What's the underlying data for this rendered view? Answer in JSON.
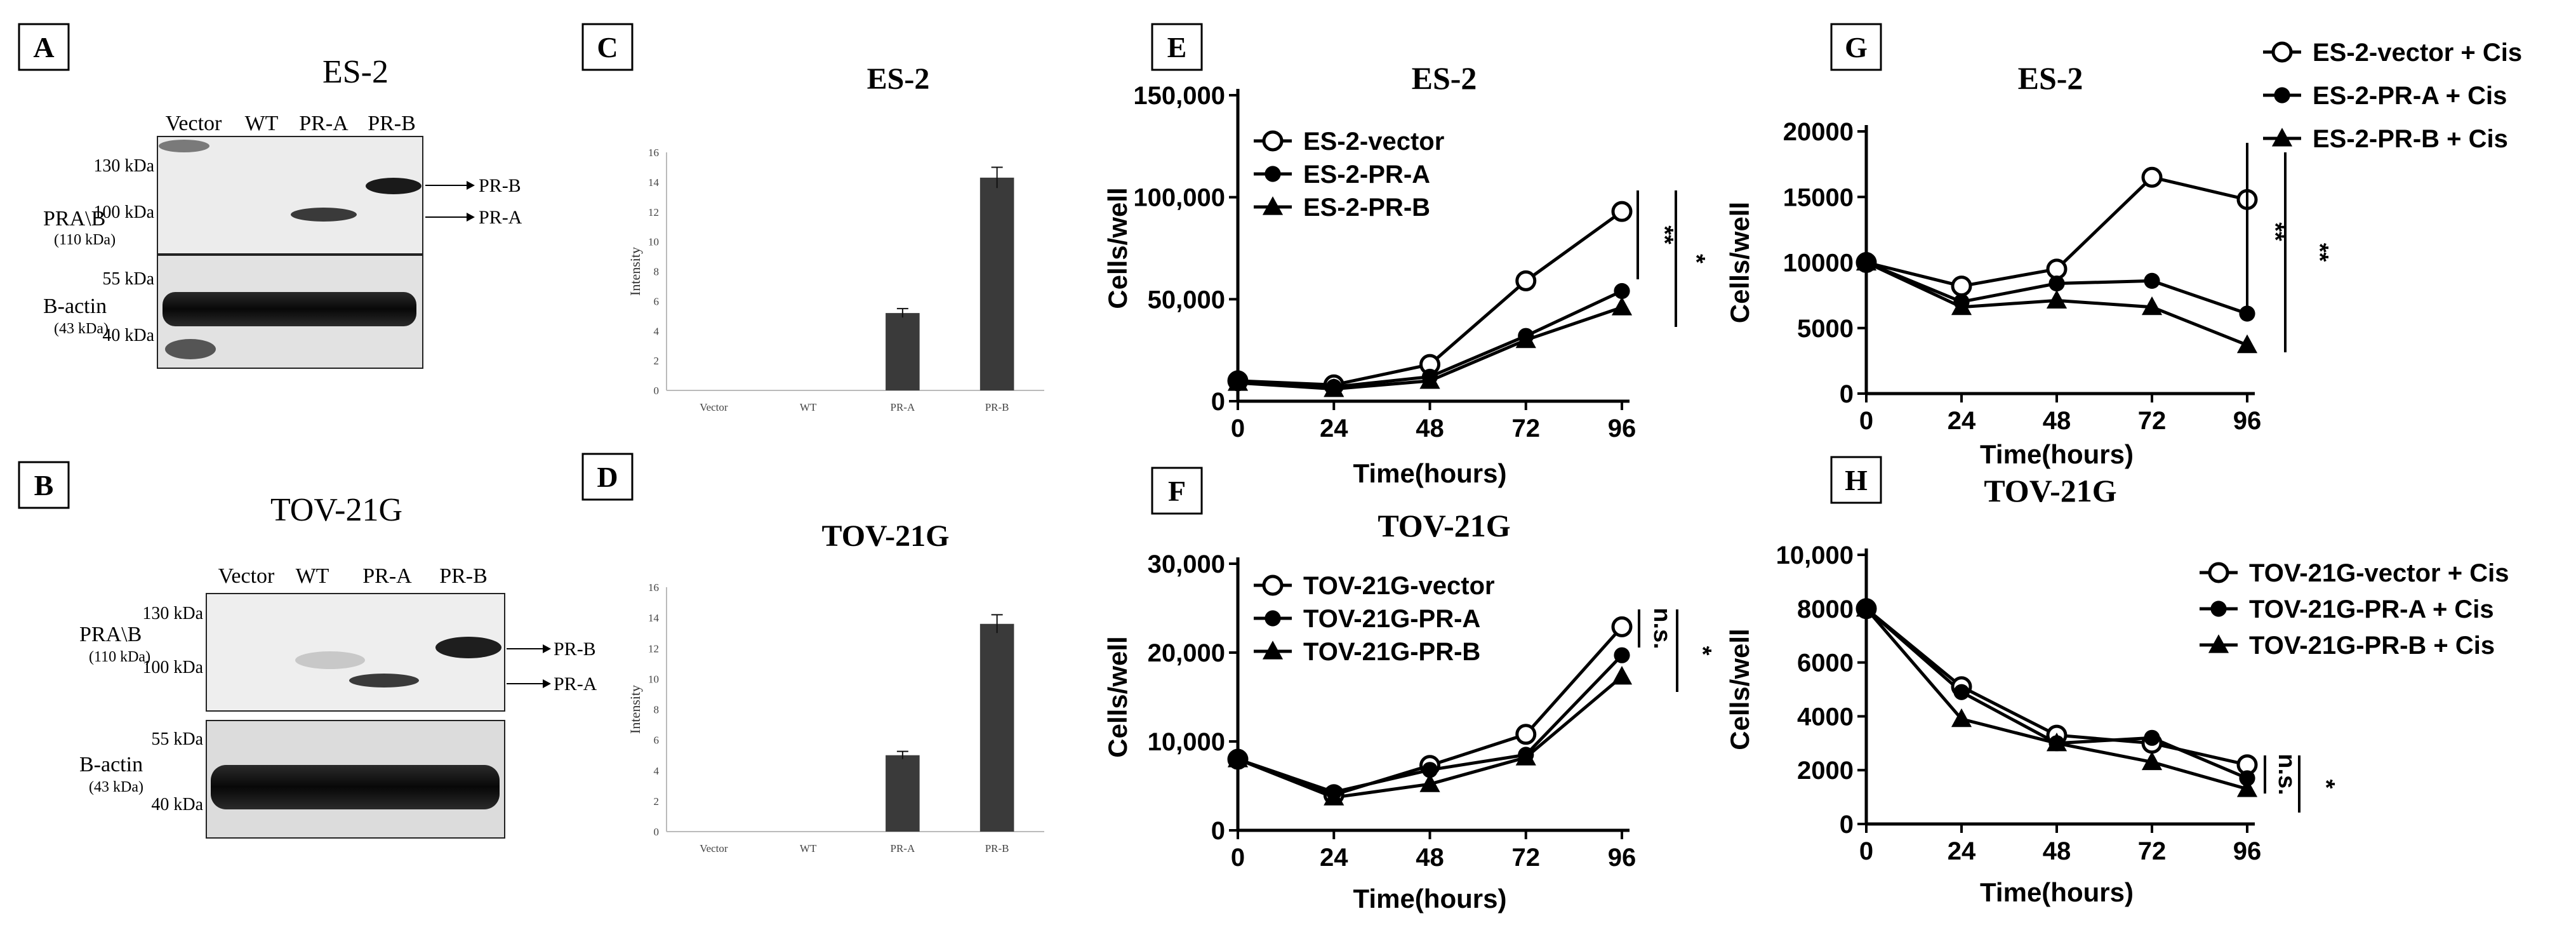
{
  "panel_letters": [
    "A",
    "B",
    "C",
    "D",
    "E",
    "F",
    "G",
    "H"
  ],
  "blots": [
    {
      "cell_line": "ES-2",
      "lanes": [
        "Vector",
        "WT",
        "PR-A",
        "PR-B"
      ],
      "pr_label": "PRA\\B",
      "pr_sub": "(110 kDa)",
      "actin_label": "B-actin",
      "actin_sub": "(43 kDa)",
      "markers_top": [
        "130 kDa",
        "100 kDa"
      ],
      "markers_bottom": [
        "55 kDa",
        "40 kDa"
      ],
      "band_arrows": [
        "PR-B",
        "PR-A"
      ]
    },
    {
      "cell_line": "TOV-21G",
      "lanes": [
        "Vector",
        "WT",
        "PR-A",
        "PR-B"
      ],
      "pr_label": "PRA\\B",
      "pr_sub": "(110 kDa)",
      "actin_label": "B-actin",
      "actin_sub": "(43 kDa)",
      "markers_top": [
        "130 kDa",
        "100 kDa"
      ],
      "markers_bottom": [
        "55 kDa",
        "40 kDa"
      ],
      "band_arrows": [
        "PR-B",
        "PR-A"
      ]
    }
  ],
  "chart_data": [
    {
      "panel": "C",
      "type": "bar",
      "title": "ES-2",
      "categories": [
        "Vector",
        "WT",
        "PR-A",
        "PR-B"
      ],
      "values": [
        0,
        0,
        5.2,
        14.3
      ],
      "errors": [
        0,
        0,
        0.3,
        0.7
      ],
      "ylabel": "Intensity",
      "ylim": [
        0,
        16
      ],
      "yticks": [
        "0",
        "2",
        "4",
        "6",
        "8",
        "10",
        "12",
        "14",
        "16"
      ]
    },
    {
      "panel": "D",
      "type": "bar",
      "title": "TOV-21G",
      "categories": [
        "Vector",
        "WT",
        "PR-A",
        "PR-B"
      ],
      "values": [
        0,
        0,
        5.0,
        13.6
      ],
      "errors": [
        0,
        0,
        0.25,
        0.6
      ],
      "ylabel": "Intensity",
      "ylim": [
        0,
        16
      ],
      "yticks": [
        "0",
        "2",
        "4",
        "6",
        "8",
        "10",
        "12",
        "14",
        "16"
      ]
    },
    {
      "panel": "E",
      "type": "line",
      "title": "ES-2",
      "xlabel": "Time(hours)",
      "ylabel": "Cells/well",
      "x": [
        0,
        24,
        48,
        72,
        96
      ],
      "xticks": [
        "0",
        "24",
        "48",
        "72",
        "96"
      ],
      "ylim": [
        0,
        150000
      ],
      "yticks": [
        "0",
        "50,000",
        "100,000",
        "150,000"
      ],
      "ytick_values": [
        0,
        50000,
        100000,
        150000
      ],
      "legend_position": "top-left",
      "series": [
        {
          "name": "ES-2-vector",
          "marker": "open-circle",
          "values": [
            10000,
            8000,
            18000,
            59000,
            93000
          ]
        },
        {
          "name": "ES-2-PR-A",
          "marker": "circle",
          "values": [
            10000,
            7000,
            12000,
            32000,
            54000
          ]
        },
        {
          "name": "ES-2-PR-B",
          "marker": "triangle",
          "values": [
            9000,
            6000,
            10000,
            30000,
            46000
          ]
        }
      ],
      "significance": [
        "**",
        "*"
      ]
    },
    {
      "panel": "F",
      "type": "line",
      "title": "TOV-21G",
      "xlabel": "Time(hours)",
      "ylabel": "Cells/well",
      "x": [
        0,
        24,
        48,
        72,
        96
      ],
      "xticks": [
        "0",
        "24",
        "48",
        "72",
        "96"
      ],
      "ylim": [
        0,
        30000
      ],
      "yticks": [
        "0",
        "10,000",
        "20,000",
        "30,000"
      ],
      "ytick_values": [
        0,
        10000,
        20000,
        30000
      ],
      "legend_position": "top-left",
      "series": [
        {
          "name": "TOV-21G-vector",
          "marker": "open-circle",
          "values": [
            8000,
            4000,
            7300,
            10800,
            22900
          ]
        },
        {
          "name": "TOV-21G-PR-A",
          "marker": "circle",
          "values": [
            8000,
            4300,
            6800,
            8500,
            19700
          ]
        },
        {
          "name": "TOV-21G-PR-B",
          "marker": "triangle",
          "values": [
            8000,
            3700,
            5200,
            8200,
            17300
          ]
        }
      ],
      "significance": [
        "n.s.",
        "*"
      ]
    },
    {
      "panel": "G",
      "type": "line",
      "title": "ES-2",
      "xlabel": "Time(hours)",
      "ylabel": "Cells/well",
      "x": [
        0,
        24,
        48,
        72,
        96
      ],
      "xticks": [
        "0",
        "24",
        "48",
        "72",
        "96"
      ],
      "ylim": [
        0,
        20000
      ],
      "yticks": [
        "0",
        "5000",
        "10000",
        "15000",
        "20000"
      ],
      "ytick_values": [
        0,
        5000,
        10000,
        15000,
        20000
      ],
      "legend_position": "outside-right",
      "series": [
        {
          "name": "ES-2-vector + Cis",
          "marker": "open-circle",
          "values": [
            10000,
            8200,
            9500,
            16500,
            14800
          ]
        },
        {
          "name": "ES-2-PR-A + Cis",
          "marker": "circle",
          "values": [
            10000,
            7000,
            8400,
            8600,
            6100
          ]
        },
        {
          "name": "ES-2-PR-B +  Cis",
          "marker": "triangle",
          "values": [
            10000,
            6600,
            7100,
            6600,
            3700
          ]
        }
      ],
      "significance": [
        "**",
        "**"
      ]
    },
    {
      "panel": "H",
      "type": "line",
      "title": "TOV-21G",
      "xlabel": "Time(hours)",
      "ylabel": "Cells/well",
      "x": [
        0,
        24,
        48,
        72,
        96
      ],
      "xticks": [
        "0",
        "24",
        "48",
        "72",
        "96"
      ],
      "ylim": [
        0,
        10000
      ],
      "yticks": [
        "0",
        "2000",
        "4000",
        "6000",
        "8000",
        "10,000"
      ],
      "ytick_values": [
        0,
        2000,
        4000,
        6000,
        8000,
        10000
      ],
      "legend_position": "top-right",
      "series": [
        {
          "name": "TOV-21G-vector + Cis",
          "marker": "open-circle",
          "values": [
            8000,
            5100,
            3300,
            3000,
            2200
          ]
        },
        {
          "name": "TOV-21G-PR-A + Cis",
          "marker": "circle",
          "values": [
            8000,
            4900,
            3000,
            3200,
            1700
          ]
        },
        {
          "name": "TOV-21G-PR-B + Cis",
          "marker": "triangle",
          "values": [
            8000,
            3900,
            3000,
            2300,
            1300
          ]
        }
      ],
      "significance": [
        "n.s.",
        "*"
      ]
    }
  ]
}
